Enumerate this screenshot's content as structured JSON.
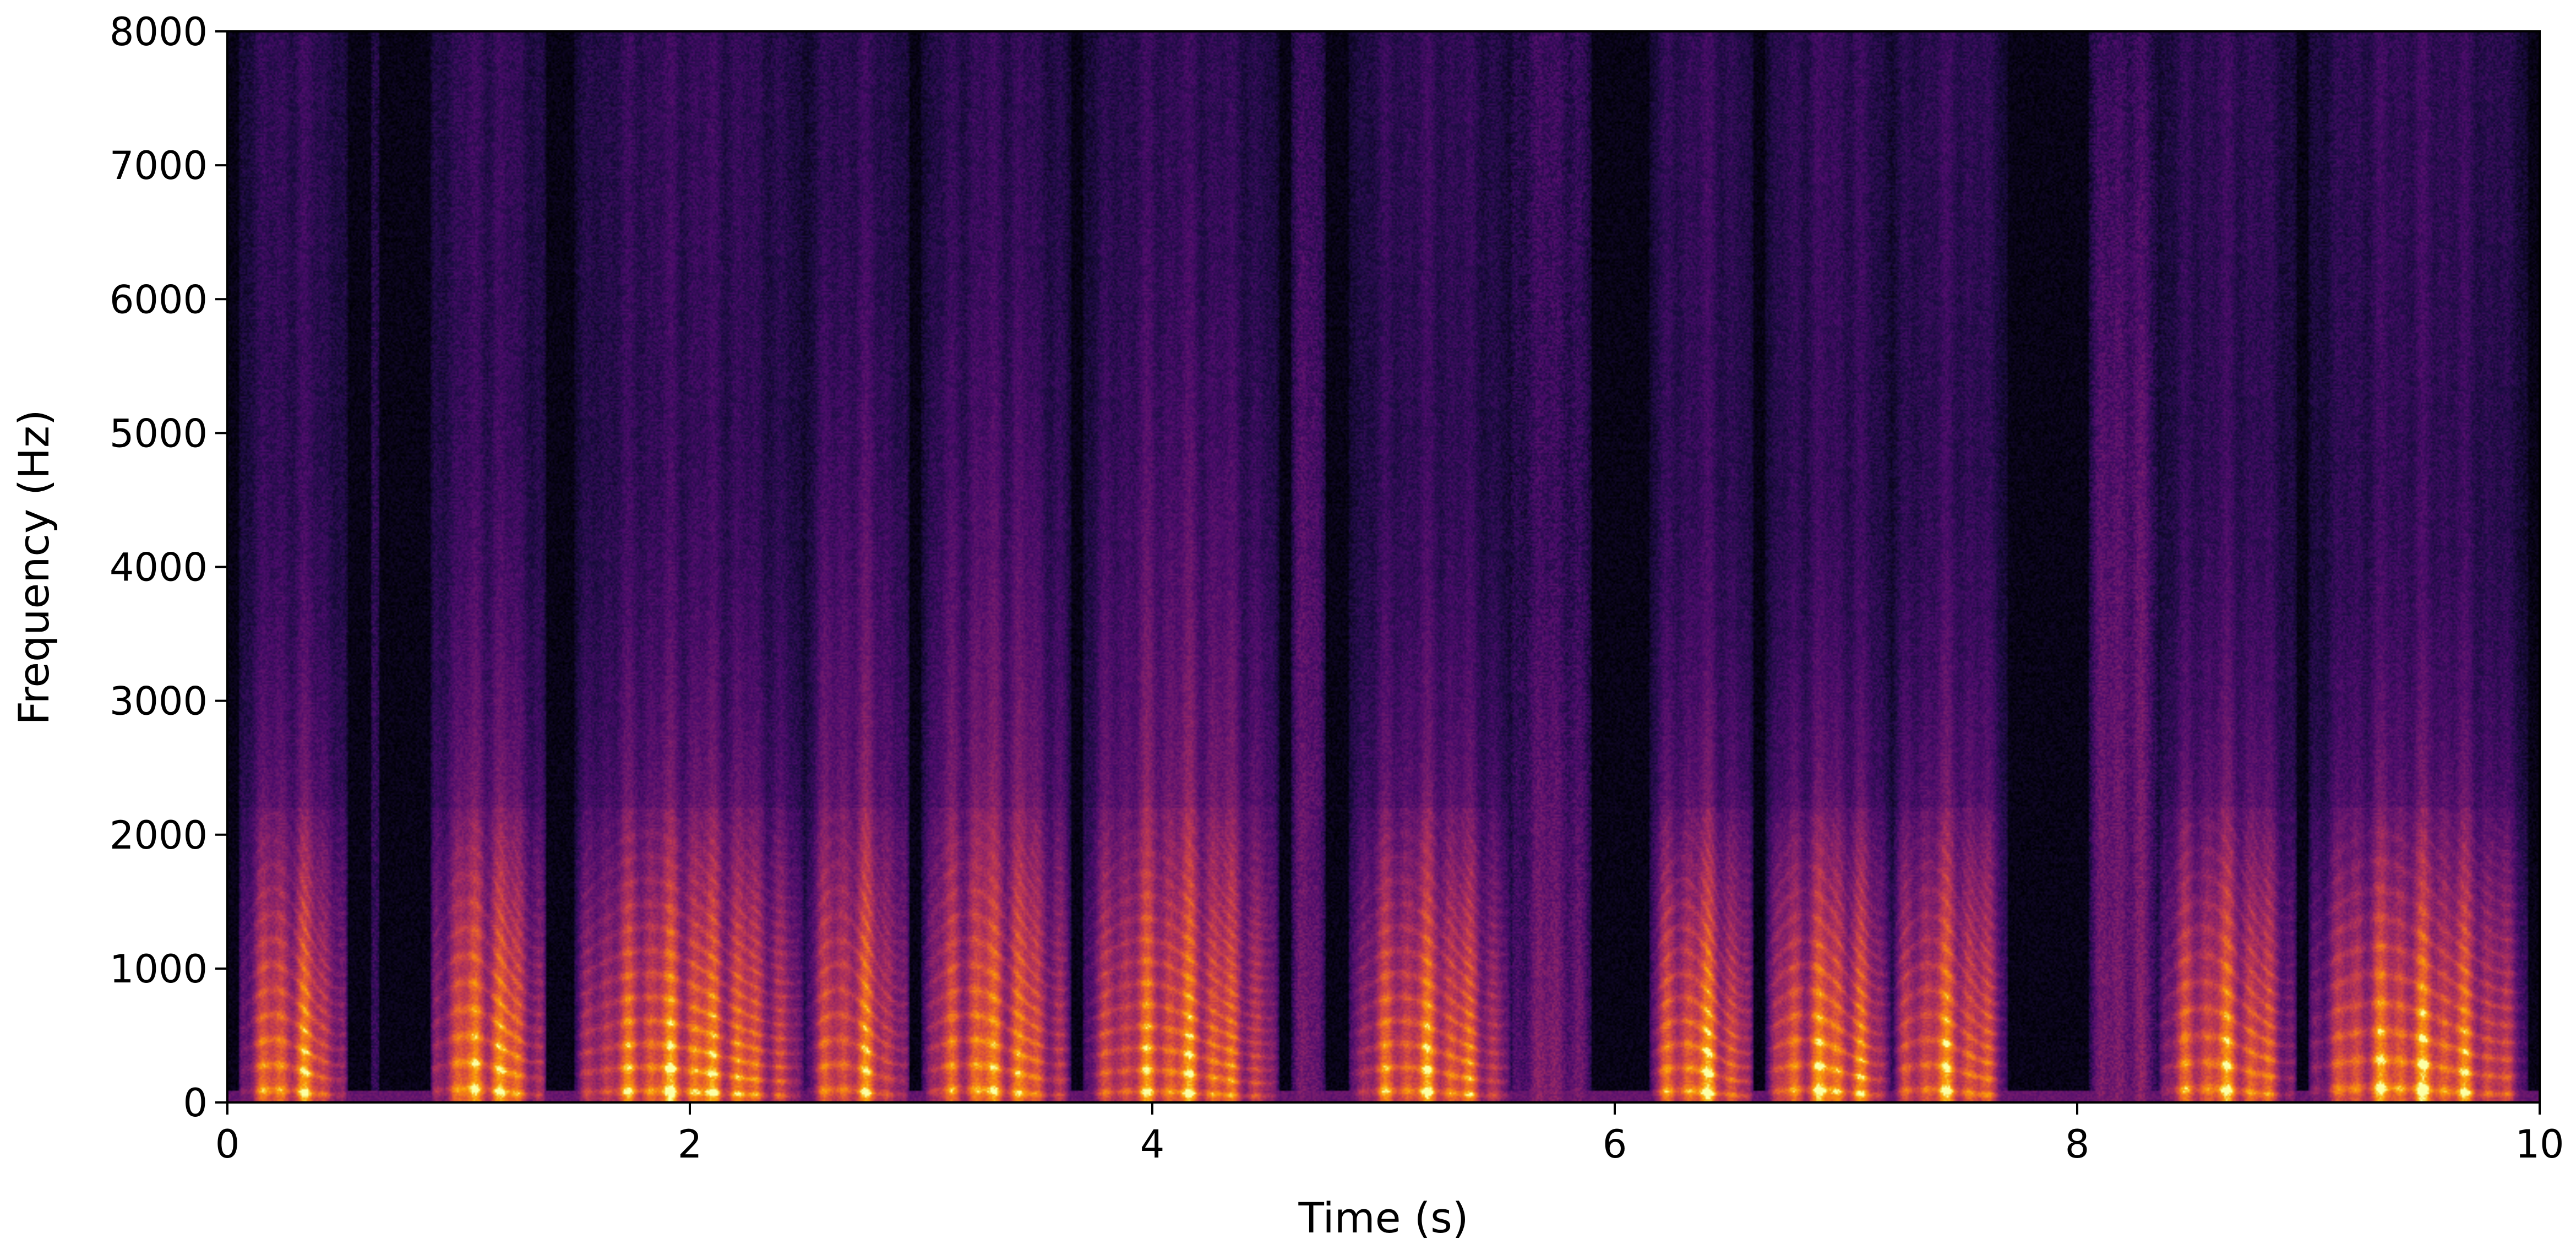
{
  "chart_data": {
    "type": "heatmap",
    "title": "",
    "xlabel": "Time (s)",
    "ylabel": "Frequency (Hz)",
    "xlim": [
      0,
      10
    ],
    "ylim": [
      0,
      8000
    ],
    "x_ticks": [
      0,
      2,
      4,
      6,
      8,
      10
    ],
    "x_tick_labels": [
      "0",
      "2",
      "4",
      "6",
      "8",
      "10"
    ],
    "y_ticks": [
      0,
      1000,
      2000,
      3000,
      4000,
      5000,
      6000,
      7000,
      8000
    ],
    "y_tick_labels": [
      "0",
      "1000",
      "2000",
      "3000",
      "4000",
      "5000",
      "6000",
      "7000",
      "8000"
    ],
    "grid": false,
    "colormap": "inferno",
    "background_color": "#000004",
    "description_segments": [
      {
        "t_start": 0.05,
        "t_end": 0.52,
        "voiced": true,
        "f0": 150,
        "max_freq": 5500,
        "level": 0.85
      },
      {
        "t_start": 0.62,
        "t_end": 0.66,
        "voiced": false,
        "max_freq": 8000,
        "level": 0.35
      },
      {
        "t_start": 0.88,
        "t_end": 1.38,
        "voiced": true,
        "f0": 160,
        "max_freq": 6000,
        "level": 0.9
      },
      {
        "t_start": 1.5,
        "t_end": 2.5,
        "voiced": true,
        "f0": 140,
        "max_freq": 5500,
        "level": 0.9
      },
      {
        "t_start": 2.5,
        "t_end": 2.95,
        "voiced": true,
        "f0": 150,
        "max_freq": 8000,
        "level": 0.8
      },
      {
        "t_start": 3.0,
        "t_end": 3.65,
        "voiced": true,
        "f0": 150,
        "max_freq": 8000,
        "level": 0.85
      },
      {
        "t_start": 3.7,
        "t_end": 4.55,
        "voiced": true,
        "f0": 130,
        "max_freq": 8000,
        "level": 0.85
      },
      {
        "t_start": 4.6,
        "t_end": 4.75,
        "voiced": false,
        "max_freq": 8000,
        "level": 0.6
      },
      {
        "t_start": 4.85,
        "t_end": 5.55,
        "voiced": true,
        "f0": 140,
        "max_freq": 5500,
        "level": 0.85
      },
      {
        "t_start": 5.55,
        "t_end": 5.9,
        "voiced": false,
        "max_freq": 4000,
        "level": 0.7
      },
      {
        "t_start": 6.15,
        "t_end": 6.6,
        "voiced": true,
        "f0": 140,
        "max_freq": 5200,
        "level": 0.9
      },
      {
        "t_start": 6.65,
        "t_end": 7.2,
        "voiced": true,
        "f0": 150,
        "max_freq": 5000,
        "level": 0.9
      },
      {
        "t_start": 7.2,
        "t_end": 7.7,
        "voiced": true,
        "f0": 150,
        "max_freq": 5500,
        "level": 0.85
      },
      {
        "t_start": 8.05,
        "t_end": 8.35,
        "voiced": false,
        "max_freq": 8000,
        "level": 0.7
      },
      {
        "t_start": 8.35,
        "t_end": 8.95,
        "voiced": true,
        "f0": 160,
        "max_freq": 5500,
        "level": 0.85
      },
      {
        "t_start": 9.0,
        "t_end": 9.95,
        "voiced": true,
        "f0": 170,
        "max_freq": 5000,
        "level": 0.9
      }
    ]
  }
}
